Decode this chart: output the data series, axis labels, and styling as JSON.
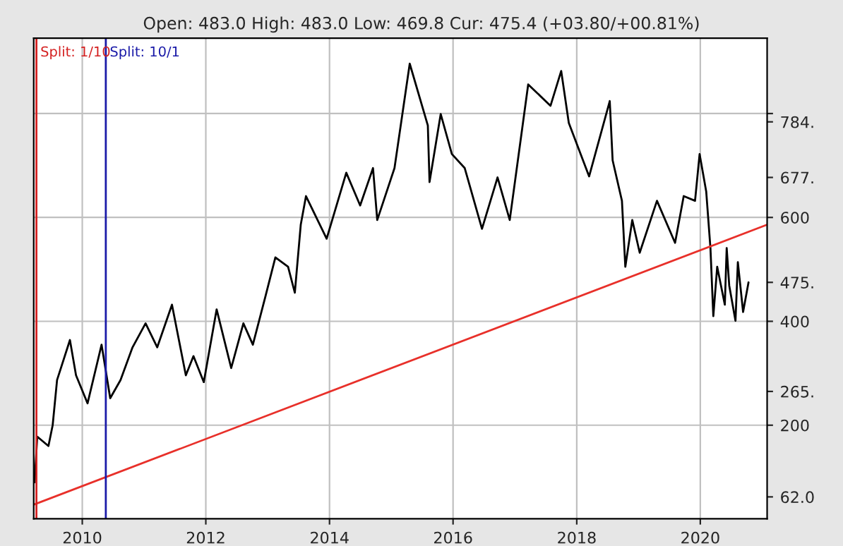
{
  "chart_data": {
    "type": "line",
    "title": "Open: 483.0 High: 483.0 Low: 469.8 Cur: 475.4 (+03.80/+00.81%)",
    "series": [
      {
        "color": "#000000",
        "x": [
          "2009-03-25",
          "2009-04-10",
          "2009-06-15",
          "2009-07-10",
          "2009-08-05",
          "2009-10-20",
          "2009-11-25",
          "2010-02-01",
          "2010-04-25",
          "2010-06-15",
          "2010-08-15",
          "2010-10-25",
          "2011-01-10",
          "2011-03-20",
          "2011-06-15",
          "2011-09-05",
          "2011-10-20",
          "2011-12-20",
          "2012-03-05",
          "2012-05-30",
          "2012-08-10",
          "2012-10-05",
          "2012-12-20",
          "2013-02-15",
          "2013-05-01",
          "2013-06-10",
          "2013-07-15",
          "2013-08-15",
          "2013-12-15",
          "2014-04-10",
          "2014-07-01",
          "2014-09-15",
          "2014-10-10",
          "2015-01-20",
          "2015-04-20",
          "2015-08-05",
          "2015-08-15",
          "2015-10-20",
          "2015-12-25",
          "2016-03-10",
          "2016-06-20",
          "2016-09-20",
          "2016-12-01",
          "2017-03-20",
          "2017-07-30",
          "2017-10-01",
          "2017-11-15",
          "2018-03-15",
          "2018-07-15",
          "2018-08-01",
          "2018-09-25",
          "2018-10-15",
          "2018-11-25",
          "2019-01-08",
          "2019-04-20",
          "2019-08-05",
          "2019-09-25",
          "2019-12-01",
          "2019-12-28",
          "2020-02-05",
          "2020-03-01",
          "2020-03-18",
          "2020-04-10",
          "2020-05-25",
          "2020-06-05",
          "2020-06-20",
          "2020-07-27",
          "2020-08-10",
          "2020-09-10",
          "2020-10-12"
        ],
        "values": [
          90,
          178,
          160,
          200,
          287,
          364,
          296,
          242,
          355,
          252,
          287,
          350,
          396,
          350,
          432,
          296,
          333,
          283,
          423,
          310,
          396,
          355,
          450,
          523,
          505,
          455,
          586,
          641,
          559,
          686,
          623,
          695,
          595,
          695,
          896,
          777,
          668,
          799,
          722,
          695,
          578,
          677,
          595,
          856,
          815,
          882,
          782,
          679,
          824,
          710,
          632,
          505,
          595,
          532,
          632,
          551,
          641,
          632,
          722,
          650,
          541,
          410,
          505,
          432,
          541,
          469,
          401,
          514,
          418,
          475
        ]
      },
      {
        "color": "#e8302a",
        "x": [
          "2009-03-20",
          "2021-01-30"
        ],
        "values": [
          47,
          586
        ]
      }
    ],
    "xlim": [
      "2009-03-20",
      "2021-01-30"
    ],
    "xticks": [
      "2010",
      "2012",
      "2014",
      "2016",
      "2018",
      "2020"
    ],
    "ylim": [
      20,
      945
    ],
    "yticks": [
      {
        "value": 62,
        "label": "62.0"
      },
      200,
      {
        "value": 265,
        "label": "265."
      },
      400,
      {
        "value": 475,
        "label": "475."
      },
      600,
      {
        "value": 677,
        "label": "677."
      },
      {
        "value": 784,
        "label": "784."
      },
      {
        "value": 800,
        "label": null
      }
    ],
    "grid": true,
    "ref_lines": [
      {
        "axis": "x",
        "value": "2009-04-05",
        "label": "Split: 1/10",
        "color": "#d42020"
      },
      {
        "axis": "x",
        "value": "2010-05-20",
        "label": "Split: 10/1",
        "color": "#1a1aa8"
      }
    ]
  }
}
